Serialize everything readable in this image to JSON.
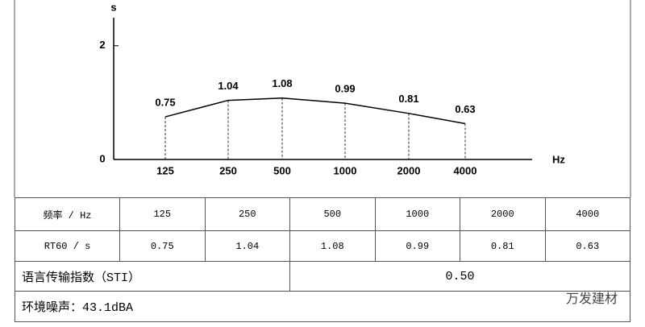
{
  "chart_data": {
    "type": "line",
    "y_label": "s",
    "x_label": "Hz",
    "categories": [
      "125",
      "250",
      "500",
      "1000",
      "2000",
      "4000"
    ],
    "values": [
      0.75,
      1.04,
      1.08,
      0.99,
      0.81,
      0.63
    ],
    "color": "#000000",
    "ylim": [
      0,
      2.45
    ],
    "yticks": [
      0,
      2
    ]
  },
  "table": {
    "rows": [
      [
        "频率 / Hz",
        "125",
        "250",
        "500",
        "1000",
        "2000",
        "4000"
      ],
      [
        "RT60 / s",
        "0.75",
        "1.04",
        "1.08",
        "0.99",
        "0.81",
        "0.63"
      ],
      [
        "语言传输指数（STI）",
        "0.50"
      ],
      [
        "环境噪声：43.1dBA"
      ]
    ]
  },
  "watermark": "万发建材"
}
